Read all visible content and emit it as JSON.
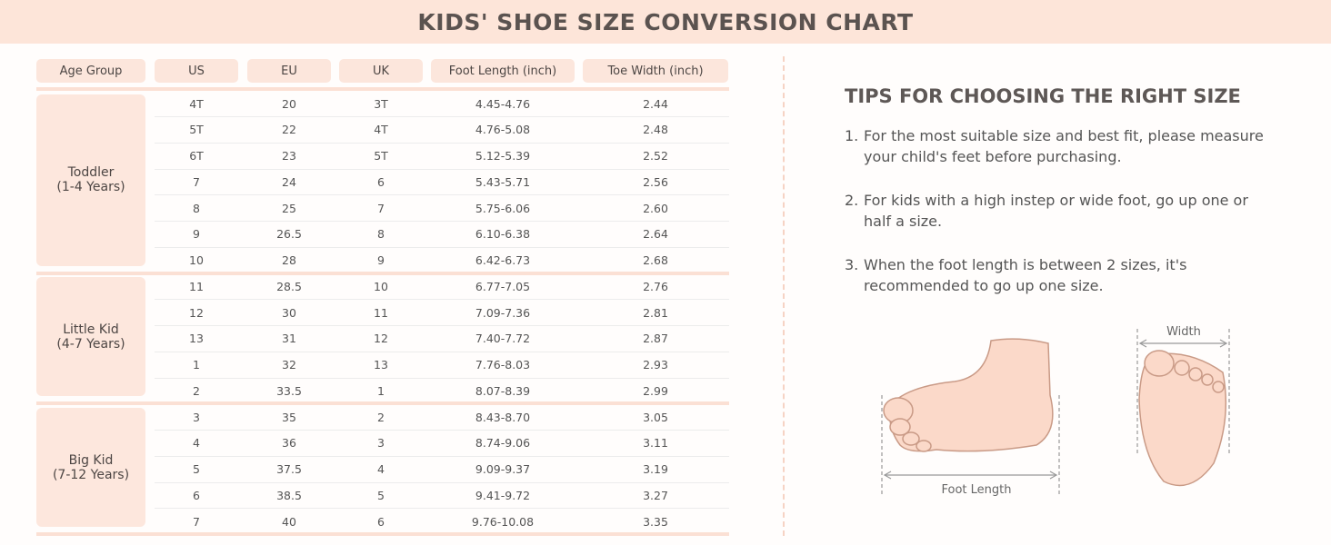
{
  "header": {
    "title": "KIDS' SHOE SIZE CONVERSION CHART"
  },
  "table": {
    "columns": [
      "Age Group",
      "US",
      "EU",
      "UK",
      "Foot Length (inch)",
      "Toe Width (inch)"
    ],
    "groups": [
      {
        "name": "Toddler",
        "ages": "(1-4 Years)",
        "rows": [
          [
            "4T",
            "20",
            "3T",
            "4.45-4.76",
            "2.44"
          ],
          [
            "5T",
            "22",
            "4T",
            "4.76-5.08",
            "2.48"
          ],
          [
            "6T",
            "23",
            "5T",
            "5.12-5.39",
            "2.52"
          ],
          [
            "7",
            "24",
            "6",
            "5.43-5.71",
            "2.56"
          ],
          [
            "8",
            "25",
            "7",
            "5.75-6.06",
            "2.60"
          ],
          [
            "9",
            "26.5",
            "8",
            "6.10-6.38",
            "2.64"
          ],
          [
            "10",
            "28",
            "9",
            "6.42-6.73",
            "2.68"
          ]
        ]
      },
      {
        "name": "Little Kid",
        "ages": "(4-7 Years)",
        "rows": [
          [
            "11",
            "28.5",
            "10",
            "6.77-7.05",
            "2.76"
          ],
          [
            "12",
            "30",
            "11",
            "7.09-7.36",
            "2.81"
          ],
          [
            "13",
            "31",
            "12",
            "7.40-7.72",
            "2.87"
          ],
          [
            "1",
            "32",
            "13",
            "7.76-8.03",
            "2.93"
          ],
          [
            "2",
            "33.5",
            "1",
            "8.07-8.39",
            "2.99"
          ]
        ]
      },
      {
        "name": "Big Kid",
        "ages": "(7-12 Years)",
        "rows": [
          [
            "3",
            "35",
            "2",
            "8.43-8.70",
            "3.05"
          ],
          [
            "4",
            "36",
            "3",
            "8.74-9.06",
            "3.11"
          ],
          [
            "5",
            "37.5",
            "4",
            "9.09-9.37",
            "3.19"
          ],
          [
            "6",
            "38.5",
            "5",
            "9.41-9.72",
            "3.27"
          ],
          [
            "7",
            "40",
            "6",
            "9.76-10.08",
            "3.35"
          ]
        ]
      }
    ]
  },
  "tips": {
    "title": "TIPS FOR CHOOSING THE RIGHT SIZE",
    "items": [
      {
        "number": "1.",
        "lines": [
          "For the most suitable size and best fit, please measure",
          "your child's feet before purchasing."
        ]
      },
      {
        "number": "2.",
        "lines": [
          "For kids with a high instep or wide foot, go up one or",
          "half a size."
        ]
      },
      {
        "number": "3.",
        "lines": [
          "When the foot length is between 2 sizes, it's",
          "recommended to go up one size."
        ]
      }
    ]
  },
  "illustration": {
    "width_label": "Width",
    "length_label": "Foot  Length"
  }
}
